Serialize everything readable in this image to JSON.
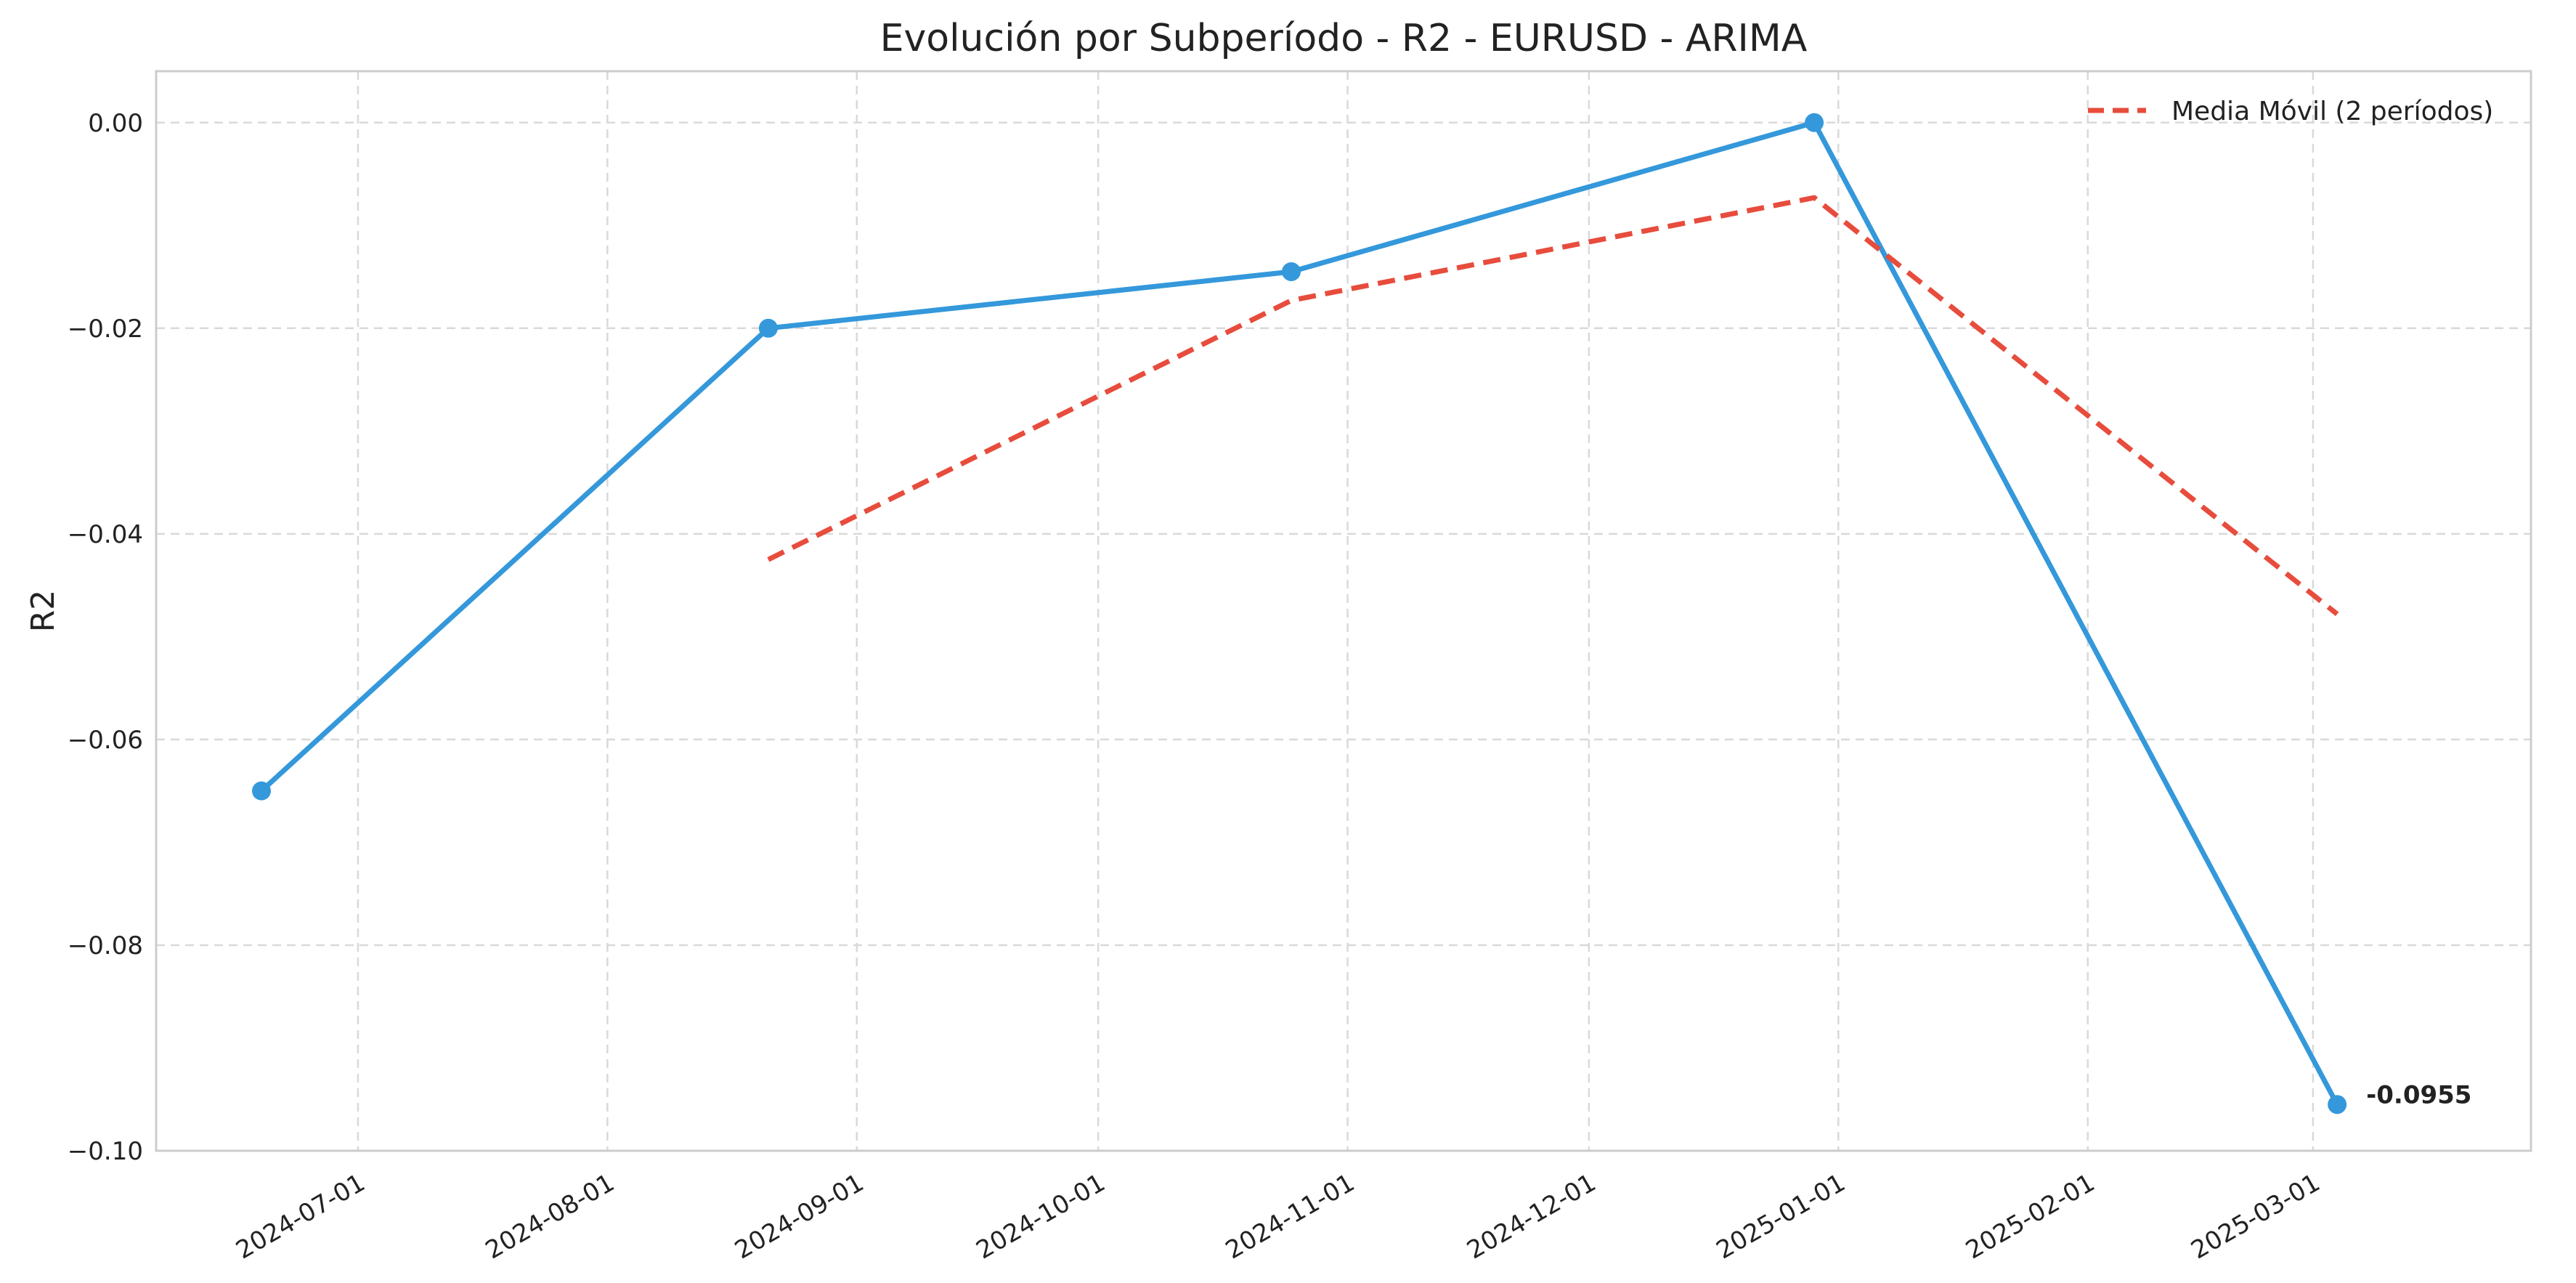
{
  "chart_data": {
    "type": "line",
    "title": "Evolución por Subperíodo - R2 - EURUSD - ARIMA",
    "xlabel": "",
    "ylabel": "R2",
    "x_type": "date",
    "xlim": [
      "2024-06-19",
      "2025-03-15"
    ],
    "ylim": [
      -0.1,
      0.005
    ],
    "grid": true,
    "legend_position": "top-right",
    "x_ticks": [
      "2024-07-01",
      "2024-08-01",
      "2024-09-01",
      "2024-10-01",
      "2024-11-01",
      "2024-12-01",
      "2025-01-01",
      "2025-02-01",
      "2025-03-01"
    ],
    "y_ticks": [
      0.0,
      -0.02,
      -0.04,
      -0.06,
      -0.08,
      -0.1
    ],
    "y_tick_labels": [
      "0.00",
      "−0.02",
      "−0.04",
      "−0.06",
      "−0.08",
      "−0.10"
    ],
    "series": [
      {
        "name": "",
        "color": "#3498db",
        "style": "solid",
        "marker": "circle",
        "x": [
          "2024-06-19",
          "2024-08-21",
          "2024-10-25",
          "2024-12-29",
          "2025-03-04"
        ],
        "y": [
          -0.065,
          -0.02,
          -0.0145,
          0.0,
          -0.0955
        ]
      },
      {
        "name": "Media Móvil (2 períodos)",
        "color": "#e74c3c",
        "style": "dashed",
        "marker": "none",
        "x": [
          "2024-08-21",
          "2024-10-25",
          "2024-12-29",
          "2025-03-04"
        ],
        "y": [
          -0.0425,
          -0.0173,
          -0.0073,
          -0.0478
        ]
      }
    ],
    "annotations": [
      {
        "text": "-0.0955",
        "x": "2025-03-04",
        "y": -0.0955
      }
    ]
  }
}
